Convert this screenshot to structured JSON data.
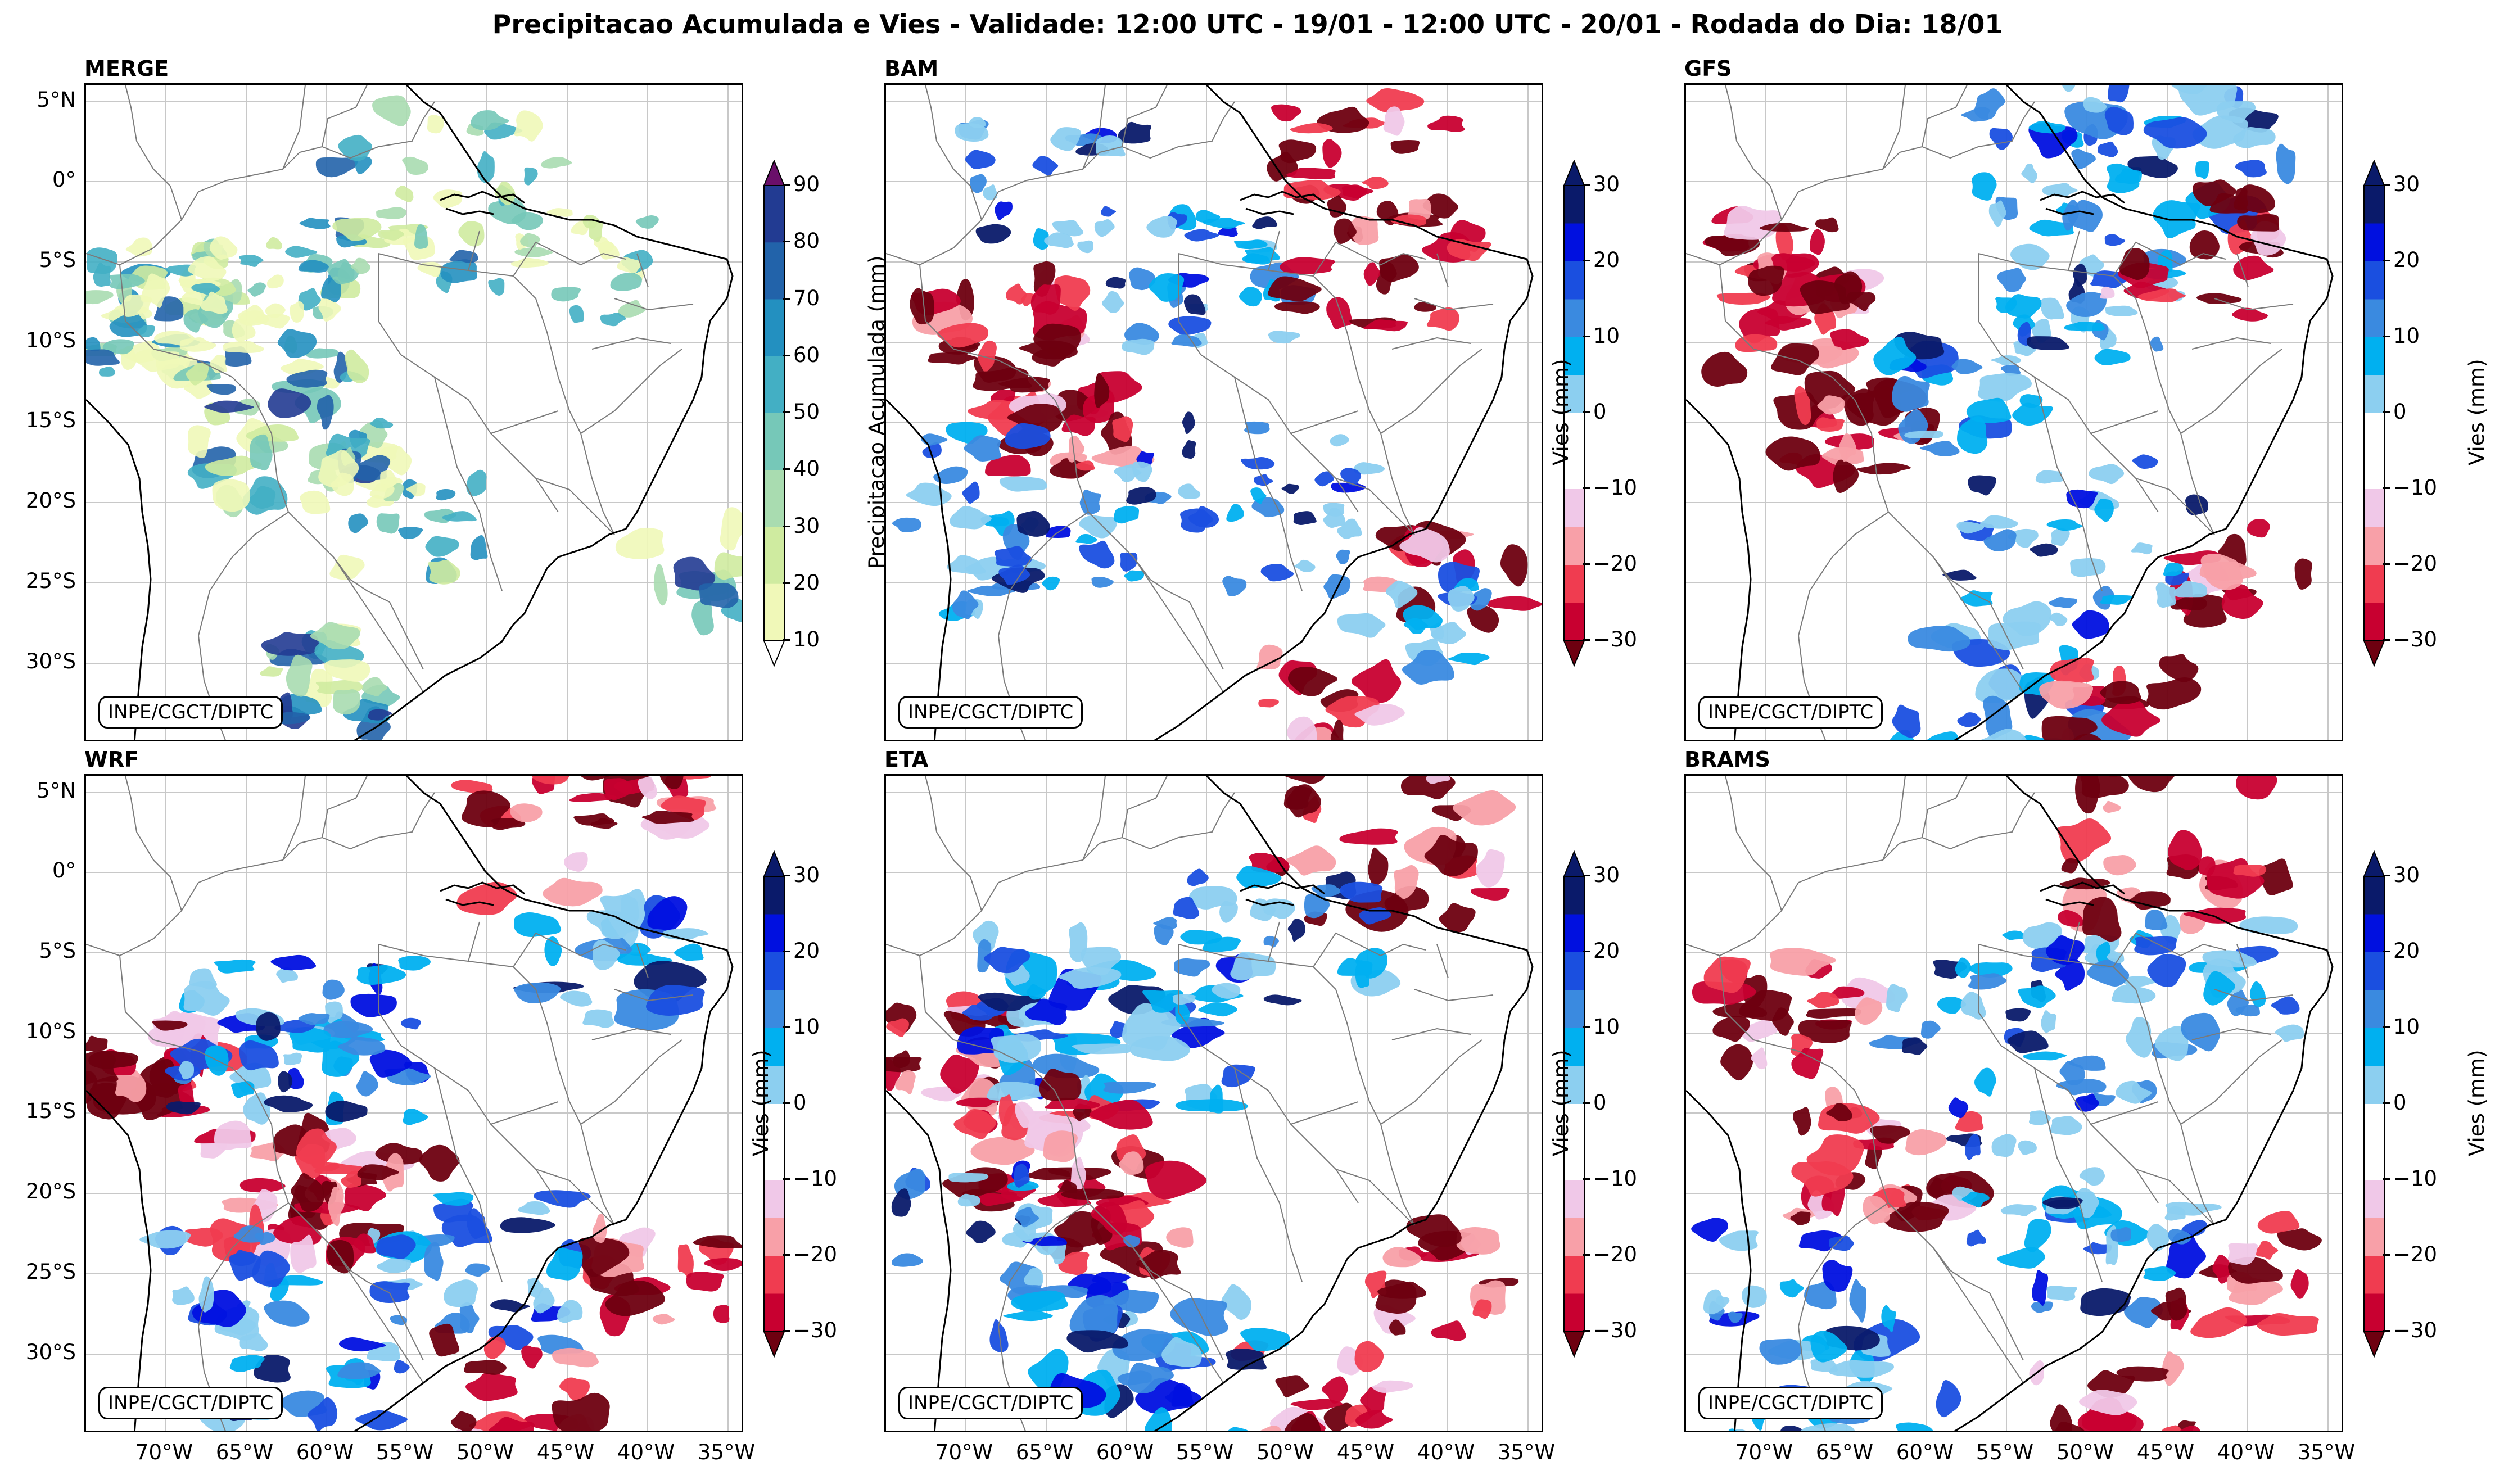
{
  "title": "Precipitacao Acumulada e Vies - Validade: 12:00 UTC - 19/01 - 12:00 UTC - 20/01 - Rodada do Dia: 18/01",
  "credit": "INPE/CGCT/DIPTC",
  "lat_ticks": [
    "5°N",
    "0°",
    "5°S",
    "10°S",
    "15°S",
    "20°S",
    "25°S",
    "30°S"
  ],
  "lon_ticks": [
    "70°W",
    "65°W",
    "60°W",
    "55°W",
    "50°W",
    "45°W",
    "40°W",
    "35°W"
  ],
  "colors": {
    "precip": [
      "#f0f8b8",
      "#cfeba0",
      "#a9dcb0",
      "#76c8b8",
      "#43afc4",
      "#2390c0",
      "#2263aa",
      "#223b92",
      "#0f1e5e",
      "#6a0f6a"
    ],
    "bias": [
      "#6e0010",
      "#c80030",
      "#f03c50",
      "#f8a0a8",
      "#f0c8e8",
      "#ffffff",
      "#8ccff0",
      "#00b0f0",
      "#3a8ae0",
      "#1a4fe0",
      "#0010e0",
      "#0a1a6a"
    ]
  },
  "panels": [
    {
      "name": "MERGE",
      "kind": "precip",
      "colorbar": {
        "label": "Precipitacao Acumulada (mm)",
        "ticks": [
          "10",
          "20",
          "30",
          "40",
          "50",
          "60",
          "70",
          "80",
          "90"
        ]
      }
    },
    {
      "name": "BAM",
      "kind": "bias",
      "colorbar": {
        "label": "Vies (mm)",
        "ticks": [
          "−30",
          "−20",
          "−10",
          "0",
          "10",
          "20",
          "30"
        ]
      }
    },
    {
      "name": "GFS",
      "kind": "bias",
      "colorbar": {
        "label": "Vies (mm)",
        "ticks": [
          "−30",
          "−20",
          "−10",
          "0",
          "10",
          "20",
          "30"
        ]
      }
    },
    {
      "name": "WRF",
      "kind": "bias",
      "colorbar": {
        "label": "Vies (mm)",
        "ticks": [
          "−30",
          "−20",
          "−10",
          "0",
          "10",
          "20",
          "30"
        ]
      }
    },
    {
      "name": "ETA",
      "kind": "bias",
      "colorbar": {
        "label": "Vies (mm)",
        "ticks": [
          "−30",
          "−20",
          "−10",
          "0",
          "10",
          "20",
          "30"
        ]
      }
    },
    {
      "name": "BRAMS",
      "kind": "bias",
      "colorbar": {
        "label": "Vies (mm)",
        "ticks": [
          "−30",
          "−20",
          "−10",
          "0",
          "10",
          "20",
          "30"
        ]
      }
    }
  ]
}
